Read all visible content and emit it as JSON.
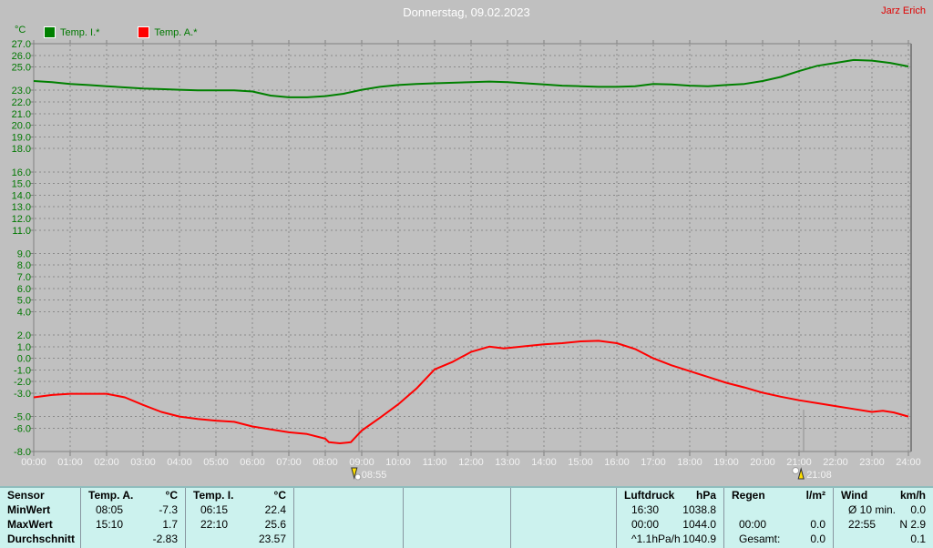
{
  "header": {
    "title": "Donnerstag, 09.02.2023",
    "user": "Jarz Erich"
  },
  "colors": {
    "background": "#c0c0c0",
    "grid": "#8a8a8a",
    "axis_frame": "#808080",
    "y_label_text": "#007800",
    "x_label_text": "#f2f2f2",
    "title_text": "#ffffff",
    "user_text": "#e00000",
    "table_background": "#ccf2ee",
    "table_separator": "#8896a0",
    "temp_i_line": "#008000",
    "temp_a_line": "#ff0000",
    "marker_line": "#909090"
  },
  "chart_data": {
    "type": "line",
    "title": "Donnerstag, 09.02.2023",
    "x_axis": {
      "unit": "time",
      "tick_labels": [
        "00:00",
        "01:00",
        "02:00",
        "03:00",
        "04:00",
        "05:00",
        "06:00",
        "07:00",
        "08:00",
        "09:00",
        "10:00",
        "11:00",
        "12:00",
        "13:00",
        "14:00",
        "15:00",
        "16:00",
        "17:00",
        "18:00",
        "19:00",
        "20:00",
        "21:00",
        "22:00",
        "23:00",
        "24:00"
      ],
      "hours_start": 0,
      "hours_end": 24
    },
    "y_axis": {
      "unit": "°C",
      "min": -8.0,
      "max": 27.0,
      "labeled_values": [
        27.0,
        26.0,
        25.0,
        23.0,
        22.0,
        21.0,
        20.0,
        19.0,
        18.0,
        16.0,
        15.0,
        14.0,
        13.0,
        12.0,
        11.0,
        9.0,
        8.0,
        7.0,
        6.0,
        5.0,
        4.0,
        2.0,
        1.0,
        0.0,
        -1.0,
        -2.0,
        -3.0,
        -5.0,
        -6.0,
        -8.0
      ]
    },
    "grid": "dashed",
    "legend_position": "top-left",
    "series": [
      {
        "name": "Temp. I.*",
        "color": "#008000",
        "points": [
          [
            0,
            23.8
          ],
          [
            0.5,
            23.7
          ],
          [
            1,
            23.55
          ],
          [
            1.5,
            23.45
          ],
          [
            2,
            23.35
          ],
          [
            2.5,
            23.25
          ],
          [
            3,
            23.15
          ],
          [
            3.5,
            23.1
          ],
          [
            4,
            23.05
          ],
          [
            4.5,
            23.0
          ],
          [
            5,
            23.0
          ],
          [
            5.5,
            23.0
          ],
          [
            6,
            22.9
          ],
          [
            6.5,
            22.55
          ],
          [
            7,
            22.4
          ],
          [
            7.5,
            22.4
          ],
          [
            8,
            22.5
          ],
          [
            8.5,
            22.7
          ],
          [
            9,
            23.05
          ],
          [
            9.5,
            23.3
          ],
          [
            10,
            23.45
          ],
          [
            10.5,
            23.55
          ],
          [
            11,
            23.6
          ],
          [
            11.5,
            23.65
          ],
          [
            12,
            23.7
          ],
          [
            12.5,
            23.75
          ],
          [
            13,
            23.7
          ],
          [
            13.5,
            23.6
          ],
          [
            14,
            23.5
          ],
          [
            14.5,
            23.4
          ],
          [
            15,
            23.35
          ],
          [
            15.5,
            23.3
          ],
          [
            16,
            23.3
          ],
          [
            16.5,
            23.35
          ],
          [
            17,
            23.55
          ],
          [
            17.5,
            23.5
          ],
          [
            18,
            23.4
          ],
          [
            18.5,
            23.35
          ],
          [
            19,
            23.45
          ],
          [
            19.5,
            23.55
          ],
          [
            20,
            23.8
          ],
          [
            20.5,
            24.15
          ],
          [
            21,
            24.65
          ],
          [
            21.5,
            25.1
          ],
          [
            22,
            25.35
          ],
          [
            22.5,
            25.6
          ],
          [
            23,
            25.55
          ],
          [
            23.5,
            25.35
          ],
          [
            24,
            25.05
          ]
        ]
      },
      {
        "name": "Temp. A.*",
        "color": "#ff0000",
        "points": [
          [
            0,
            -3.35
          ],
          [
            0.5,
            -3.15
          ],
          [
            1,
            -3.05
          ],
          [
            1.5,
            -3.05
          ],
          [
            2,
            -3.05
          ],
          [
            2.5,
            -3.35
          ],
          [
            3,
            -4.0
          ],
          [
            3.5,
            -4.6
          ],
          [
            4,
            -5.0
          ],
          [
            4.5,
            -5.2
          ],
          [
            5,
            -5.35
          ],
          [
            5.5,
            -5.45
          ],
          [
            6,
            -5.85
          ],
          [
            6.5,
            -6.1
          ],
          [
            7,
            -6.35
          ],
          [
            7.5,
            -6.5
          ],
          [
            8,
            -6.9
          ],
          [
            8.1,
            -7.2
          ],
          [
            8.4,
            -7.3
          ],
          [
            8.7,
            -7.2
          ],
          [
            9,
            -6.2
          ],
          [
            9.5,
            -5.1
          ],
          [
            10,
            -3.95
          ],
          [
            10.5,
            -2.6
          ],
          [
            11,
            -0.95
          ],
          [
            11.5,
            -0.3
          ],
          [
            12,
            0.55
          ],
          [
            12.5,
            1.0
          ],
          [
            12.9,
            0.85
          ],
          [
            13.5,
            1.05
          ],
          [
            14,
            1.2
          ],
          [
            14.5,
            1.3
          ],
          [
            15,
            1.45
          ],
          [
            15.5,
            1.5
          ],
          [
            16,
            1.3
          ],
          [
            16.5,
            0.8
          ],
          [
            17,
            0.0
          ],
          [
            17.5,
            -0.6
          ],
          [
            18,
            -1.1
          ],
          [
            18.5,
            -1.6
          ],
          [
            19,
            -2.1
          ],
          [
            19.5,
            -2.5
          ],
          [
            20,
            -2.95
          ],
          [
            20.5,
            -3.3
          ],
          [
            21,
            -3.6
          ],
          [
            21.5,
            -3.85
          ],
          [
            22,
            -4.1
          ],
          [
            22.5,
            -4.35
          ],
          [
            23,
            -4.6
          ],
          [
            23.3,
            -4.5
          ],
          [
            23.6,
            -4.65
          ],
          [
            24,
            -5.0
          ]
        ]
      }
    ],
    "markers": [
      {
        "label": "08:55",
        "hour": 8.92,
        "icon": "sun-down-icon"
      },
      {
        "label": "21:08",
        "hour": 21.13,
        "icon": "sun-up-icon"
      }
    ]
  },
  "table": {
    "row_labels": [
      "Sensor",
      "MinWert",
      "MaxWert",
      "Durchschnitt"
    ],
    "columns": [
      {
        "name": "Temp. A.",
        "unit": "°C",
        "rows": [
          [
            "08:05",
            "-7.3"
          ],
          [
            "15:10",
            "1.7"
          ],
          [
            "",
            "-2.83"
          ]
        ]
      },
      {
        "name": "Temp. I.",
        "unit": "°C",
        "rows": [
          [
            "06:15",
            "22.4"
          ],
          [
            "22:10",
            "25.6"
          ],
          [
            "",
            "23.57"
          ]
        ]
      },
      {
        "name": "",
        "unit": "",
        "rows": [
          [
            "",
            ""
          ],
          [
            "",
            ""
          ],
          [
            "",
            ""
          ]
        ]
      },
      {
        "name": "",
        "unit": "",
        "rows": [
          [
            "",
            ""
          ],
          [
            "",
            ""
          ],
          [
            "",
            ""
          ]
        ]
      },
      {
        "name": "",
        "unit": "",
        "rows": [
          [
            "",
            ""
          ],
          [
            "",
            ""
          ],
          [
            "",
            ""
          ]
        ]
      },
      {
        "name": "Luftdruck",
        "unit": "hPa",
        "rows": [
          [
            "16:30",
            "1038.8"
          ],
          [
            "00:00",
            "1044.0"
          ],
          [
            "^1.1hPa/h",
            "1040.9"
          ]
        ]
      },
      {
        "name": "Regen",
        "unit": "l/m²",
        "rows": [
          [
            "",
            ""
          ],
          [
            "00:00",
            "0.0"
          ],
          [
            "Gesamt:",
            "0.0"
          ]
        ]
      },
      {
        "name": "Wind",
        "unit": "km/h",
        "rows": [
          [
            "Ø 10 min.",
            "0.0"
          ],
          [
            "22:55",
            "N 2.9"
          ],
          [
            "",
            "0.1"
          ]
        ]
      }
    ]
  }
}
